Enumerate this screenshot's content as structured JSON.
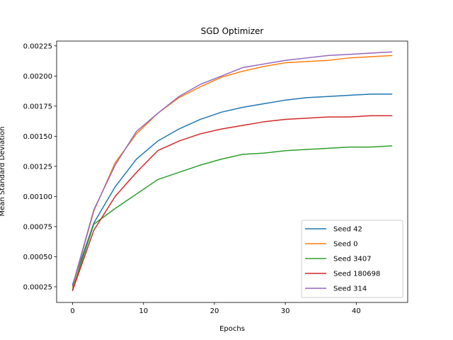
{
  "chart_data": {
    "type": "line",
    "title": "SGD Optimizer",
    "xlabel": "Epochs",
    "ylabel": "Mean Standard Deviation",
    "xlim": [
      -2.25,
      47.25
    ],
    "ylim": [
      0.00012,
      0.00229
    ],
    "x_ticks": [
      0,
      10,
      20,
      30,
      40
    ],
    "x_tick_labels": [
      "0",
      "10",
      "20",
      "30",
      "40"
    ],
    "y_ticks": [
      0.00025,
      0.0005,
      0.00075,
      0.001,
      0.00125,
      0.0015,
      0.00175,
      0.002,
      0.00225
    ],
    "y_tick_labels": [
      "0.00025",
      "0.00050",
      "0.00075",
      "0.00100",
      "0.00125",
      "0.00150",
      "0.00175",
      "0.00200",
      "0.00225"
    ],
    "grid": false,
    "legend_position": "lower-right",
    "x": [
      0,
      3,
      6,
      9,
      12,
      15,
      18,
      21,
      24,
      27,
      30,
      33,
      36,
      39,
      42,
      45
    ],
    "series": [
      {
        "name": "Seed 42",
        "color": "#1f77b4",
        "values": [
          0.00027,
          0.00078,
          0.00108,
          0.00131,
          0.00146,
          0.00156,
          0.00164,
          0.0017,
          0.00174,
          0.00177,
          0.0018,
          0.00182,
          0.00183,
          0.00184,
          0.00185,
          0.00185
        ]
      },
      {
        "name": "Seed 0",
        "color": "#ff7f0e",
        "values": [
          0.00025,
          0.00088,
          0.00128,
          0.00152,
          0.00169,
          0.00182,
          0.00191,
          0.00199,
          0.00204,
          0.00208,
          0.00211,
          0.00212,
          0.00213,
          0.00215,
          0.00216,
          0.00217
        ]
      },
      {
        "name": "Seed 3407",
        "color": "#2ca02c",
        "values": [
          0.00023,
          0.00077,
          0.0009,
          0.00102,
          0.00114,
          0.0012,
          0.00126,
          0.00131,
          0.00135,
          0.00136,
          0.00138,
          0.00139,
          0.0014,
          0.00141,
          0.00141,
          0.00142
        ]
      },
      {
        "name": "Seed 180698",
        "color": "#d62728",
        "values": [
          0.00022,
          0.00072,
          0.001,
          0.0012,
          0.00138,
          0.00146,
          0.00152,
          0.00156,
          0.00159,
          0.00162,
          0.00164,
          0.00165,
          0.00166,
          0.00166,
          0.00167,
          0.00167
        ]
      },
      {
        "name": "Seed 314",
        "color": "#9467bd",
        "values": [
          0.00026,
          0.00089,
          0.00126,
          0.00154,
          0.00169,
          0.00183,
          0.00193,
          0.002,
          0.00207,
          0.0021,
          0.00213,
          0.00215,
          0.00217,
          0.00218,
          0.00219,
          0.0022
        ]
      }
    ]
  }
}
